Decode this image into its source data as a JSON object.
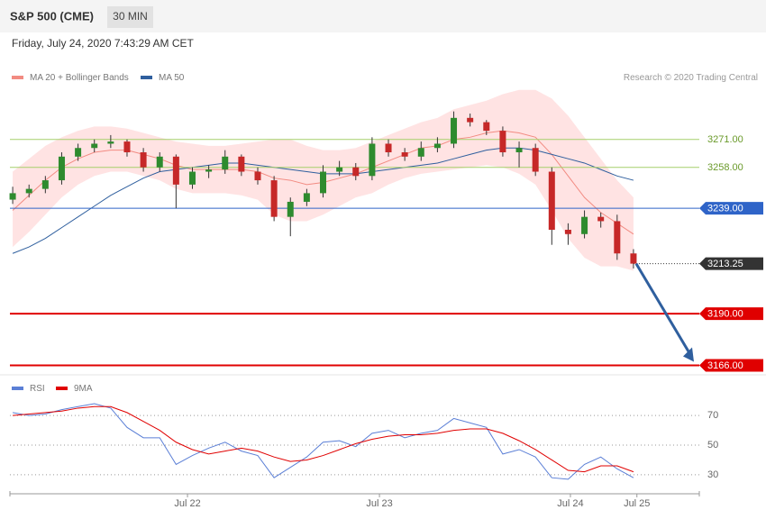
{
  "header": {
    "title": "S&P 500 (CME)",
    "interval": "30 MIN",
    "timestamp": "Friday, July 24, 2020 7:43:29 AM CET"
  },
  "chart_data": [
    {
      "type": "candlestick",
      "legend": [
        {
          "name": "MA 20 + Bollinger Bands",
          "color": "#f28b82"
        },
        {
          "name": "MA 50",
          "color": "#2f5f9e"
        }
      ],
      "credit": "Research © 2020 Trading Central",
      "open": [
        3243,
        3246,
        3248,
        3252,
        3263,
        3267,
        3269,
        3270,
        3265,
        3258,
        3263,
        3250,
        3256,
        3257,
        3263,
        3256,
        3252,
        3235,
        3242,
        3246,
        3256,
        3258,
        3254,
        3269,
        3265,
        3263,
        3267,
        3269,
        3281,
        3279,
        3275,
        3265,
        3267,
        3256,
        3229,
        3227,
        3235,
        3233,
        3218
      ],
      "high": [
        3249,
        3250,
        3254,
        3265,
        3269,
        3271,
        3273,
        3271,
        3267,
        3265,
        3264,
        3258,
        3259,
        3266,
        3264,
        3258,
        3254,
        3244,
        3248,
        3259,
        3261,
        3260,
        3272,
        3271,
        3267,
        3270,
        3272,
        3284,
        3283,
        3280,
        3277,
        3270,
        3269,
        3258,
        3232,
        3238,
        3237,
        3236,
        3220
      ],
      "low": [
        3241,
        3244,
        3246,
        3250,
        3261,
        3265,
        3267,
        3263,
        3256,
        3256,
        3239,
        3248,
        3253,
        3255,
        3254,
        3250,
        3233,
        3226,
        3240,
        3244,
        3254,
        3252,
        3252,
        3263,
        3261,
        3261,
        3265,
        3267,
        3277,
        3273,
        3263,
        3258,
        3254,
        3222,
        3222,
        3225,
        3230,
        3215,
        3211
      ],
      "close": [
        3246,
        3248,
        3252,
        3263,
        3267,
        3269,
        3270,
        3265,
        3258,
        3263,
        3250,
        3256,
        3257,
        3263,
        3256,
        3252,
        3235,
        3242,
        3246,
        3256,
        3258,
        3254,
        3269,
        3265,
        3263,
        3267,
        3269,
        3281,
        3279,
        3275,
        3265,
        3267,
        3256,
        3229,
        3227,
        3235,
        3233,
        3218,
        3213.25
      ],
      "upper_band": [
        3256,
        3262,
        3268,
        3272,
        3275,
        3277,
        3277,
        3276,
        3274,
        3272,
        3270,
        3269,
        3268,
        3268,
        3269,
        3270,
        3271,
        3271,
        3268,
        3266,
        3266,
        3267,
        3270,
        3273,
        3276,
        3279,
        3281,
        3285,
        3287,
        3289,
        3292,
        3294,
        3294,
        3290,
        3282,
        3272,
        3262,
        3252,
        3244
      ],
      "lower_band": [
        3221,
        3228,
        3236,
        3244,
        3250,
        3254,
        3256,
        3256,
        3254,
        3252,
        3248,
        3246,
        3246,
        3246,
        3245,
        3243,
        3236,
        3233,
        3233,
        3236,
        3240,
        3244,
        3246,
        3250,
        3253,
        3255,
        3256,
        3257,
        3258,
        3259,
        3258,
        3255,
        3250,
        3238,
        3225,
        3216,
        3212,
        3212,
        3210
      ],
      "ma20": [
        3238,
        3245,
        3252,
        3258,
        3262,
        3265,
        3266,
        3266,
        3264,
        3262,
        3259,
        3257,
        3257,
        3257,
        3257,
        3256,
        3253,
        3252,
        3250,
        3251,
        3253,
        3255,
        3258,
        3261,
        3264,
        3267,
        3268,
        3271,
        3272,
        3274,
        3275,
        3274,
        3272,
        3264,
        3254,
        3244,
        3237,
        3232,
        3227
      ],
      "ma50": [
        3218,
        3221,
        3225,
        3230,
        3235,
        3240,
        3245,
        3249,
        3253,
        3256,
        3257,
        3258,
        3259,
        3260,
        3260,
        3259,
        3258,
        3257,
        3256,
        3255,
        3255,
        3255,
        3256,
        3257,
        3258,
        3259,
        3260,
        3262,
        3264,
        3266,
        3267,
        3267,
        3266,
        3264,
        3262,
        3260,
        3257,
        3254,
        3252
      ],
      "levels": [
        {
          "value": 3271,
          "label": "3271.00",
          "color": "#a5cf6b"
        },
        {
          "value": 3258,
          "label": "3258.00",
          "color": "#a5cf6b"
        },
        {
          "value": 3239,
          "label": "3239.00",
          "color": "#2f64c8"
        },
        {
          "value": 3213.25,
          "label": "3213.25",
          "color": "#333333"
        },
        {
          "value": 3190,
          "label": "3190.00",
          "color": "#e00000"
        },
        {
          "value": 3166,
          "label": "3166.00",
          "color": "#e00000"
        }
      ],
      "xlim": [
        -0.17,
        42.03
      ],
      "ylim": [
        3162,
        3296
      ]
    },
    {
      "type": "line",
      "series": [
        {
          "name": "RSI",
          "color": "#5b7fd6",
          "values": [
            72,
            70,
            71,
            74,
            76,
            78,
            75,
            62,
            55,
            55,
            37,
            43,
            48,
            52,
            46,
            43,
            28,
            35,
            42,
            52,
            53,
            49,
            58,
            60,
            55,
            58,
            60,
            68,
            65,
            62,
            44,
            47,
            42,
            28,
            27,
            37,
            42,
            34,
            28
          ]
        },
        {
          "name": "9MA",
          "color": "#e00000",
          "values": [
            70,
            71,
            72,
            73,
            75,
            76,
            76,
            72,
            66,
            60,
            52,
            47,
            44,
            46,
            48,
            46,
            42,
            39,
            40,
            43,
            47,
            51,
            54,
            56,
            57,
            57,
            58,
            60,
            61,
            61,
            58,
            53,
            47,
            40,
            33,
            32,
            36,
            36,
            32
          ]
        }
      ],
      "xlim": [
        -0.17,
        42.03
      ],
      "ylim": [
        19,
        92
      ],
      "yticks": [
        30,
        50,
        70
      ],
      "xticks": [
        {
          "value": 10.7,
          "label": "Jul 22"
        },
        {
          "value": 22.45,
          "label": "Jul 23"
        },
        {
          "value": 34.14,
          "label": "Jul 24"
        },
        {
          "value": 38.21,
          "label": "Jul 25"
        }
      ]
    }
  ]
}
